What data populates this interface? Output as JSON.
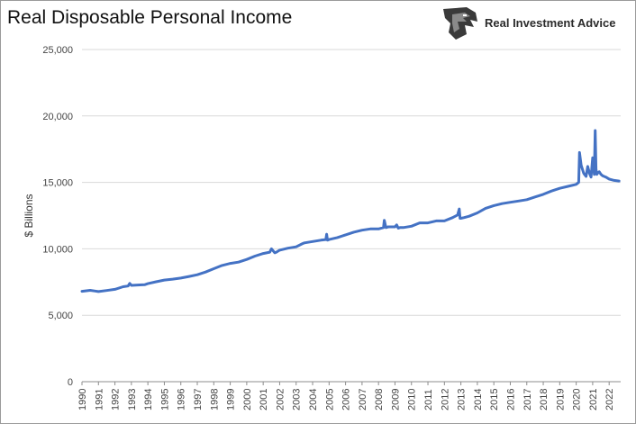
{
  "header": {
    "title": "Real Disposable Personal Income",
    "brand_name": "Real Investment Advice",
    "brand_icon": "eagle-head-logo-icon"
  },
  "chart_data": {
    "type": "line",
    "title": "Real Disposable Personal Income",
    "xlabel": "",
    "ylabel": "$ Billions",
    "ylim": [
      0,
      25000
    ],
    "yticks": [
      0,
      5000,
      10000,
      15000,
      20000,
      25000
    ],
    "ytick_labels": [
      "0",
      "5,000",
      "10,000",
      "15,000",
      "20,000",
      "25,000"
    ],
    "xlim": [
      1990,
      2022.7
    ],
    "xticks": [
      "1990",
      "1991",
      "1992",
      "1993",
      "1994",
      "1995",
      "1996",
      "1997",
      "1998",
      "1999",
      "2000",
      "2001",
      "2002",
      "2003",
      "2004",
      "2005",
      "2006",
      "2007",
      "2008",
      "2009",
      "2010",
      "2011",
      "2012",
      "2013",
      "2014",
      "2015",
      "2016",
      "2017",
      "2018",
      "2019",
      "2020",
      "2021",
      "2022"
    ],
    "grid": true,
    "legend": "none",
    "line_color": "#4472c4",
    "series": [
      {
        "x": [
          1990.0,
          1990.5,
          1990.8,
          1991.0,
          1991.5,
          1992.0,
          1992.5,
          1992.8,
          1992.9,
          1993.0,
          1993.5,
          1993.8,
          1994.0,
          1994.5,
          1995.0,
          1995.5,
          1996.0,
          1996.5,
          1997.0,
          1997.5,
          1998.0,
          1998.5,
          1999.0,
          1999.5,
          2000.0,
          2000.5,
          2001.0,
          2001.4,
          2001.5,
          2001.7,
          2001.8,
          2002.0,
          2002.5,
          2003.0,
          2003.4,
          2003.5,
          2004.0,
          2004.5,
          2004.8,
          2004.85,
          2004.9,
          2005.0,
          2005.5,
          2006.0,
          2006.5,
          2007.0,
          2007.5,
          2008.0,
          2008.3,
          2008.35,
          2008.45,
          2008.6,
          2009.0,
          2009.1,
          2009.2,
          2009.3,
          2009.5,
          2010.0,
          2010.5,
          2011.0,
          2011.5,
          2012.0,
          2012.5,
          2012.8,
          2012.9,
          2012.95,
          2013.0,
          2013.2,
          2013.5,
          2014.0,
          2014.5,
          2015.0,
          2015.5,
          2016.0,
          2016.5,
          2017.0,
          2017.5,
          2018.0,
          2018.5,
          2019.0,
          2019.5,
          2020.0,
          2020.15,
          2020.2,
          2020.3,
          2020.45,
          2020.5,
          2020.6,
          2020.7,
          2020.8,
          2020.9,
          2021.0,
          2021.1,
          2021.15,
          2021.2,
          2021.25,
          2021.3,
          2021.4,
          2021.5,
          2021.6,
          2021.8,
          2022.0,
          2022.3,
          2022.6
        ],
        "values": [
          6800,
          6880,
          6820,
          6780,
          6860,
          6950,
          7150,
          7200,
          7400,
          7250,
          7280,
          7300,
          7380,
          7520,
          7650,
          7720,
          7800,
          7920,
          8050,
          8250,
          8500,
          8750,
          8900,
          9000,
          9200,
          9450,
          9650,
          9750,
          10000,
          9700,
          9750,
          9900,
          10050,
          10150,
          10400,
          10450,
          10550,
          10650,
          10700,
          11100,
          10650,
          10700,
          10850,
          11050,
          11250,
          11400,
          11500,
          11500,
          11600,
          12150,
          11600,
          11650,
          11650,
          11800,
          11550,
          11600,
          11600,
          11700,
          11950,
          11950,
          12100,
          12100,
          12350,
          12550,
          13000,
          12300,
          12300,
          12350,
          12450,
          12700,
          13050,
          13250,
          13400,
          13500,
          13600,
          13700,
          13900,
          14100,
          14350,
          14550,
          14700,
          14850,
          15000,
          17250,
          16300,
          15700,
          15600,
          15450,
          16200,
          15700,
          15400,
          16850,
          15600,
          18900,
          16000,
          15600,
          15700,
          15800,
          15600,
          15500,
          15400,
          15250,
          15150,
          15100
        ]
      }
    ]
  }
}
